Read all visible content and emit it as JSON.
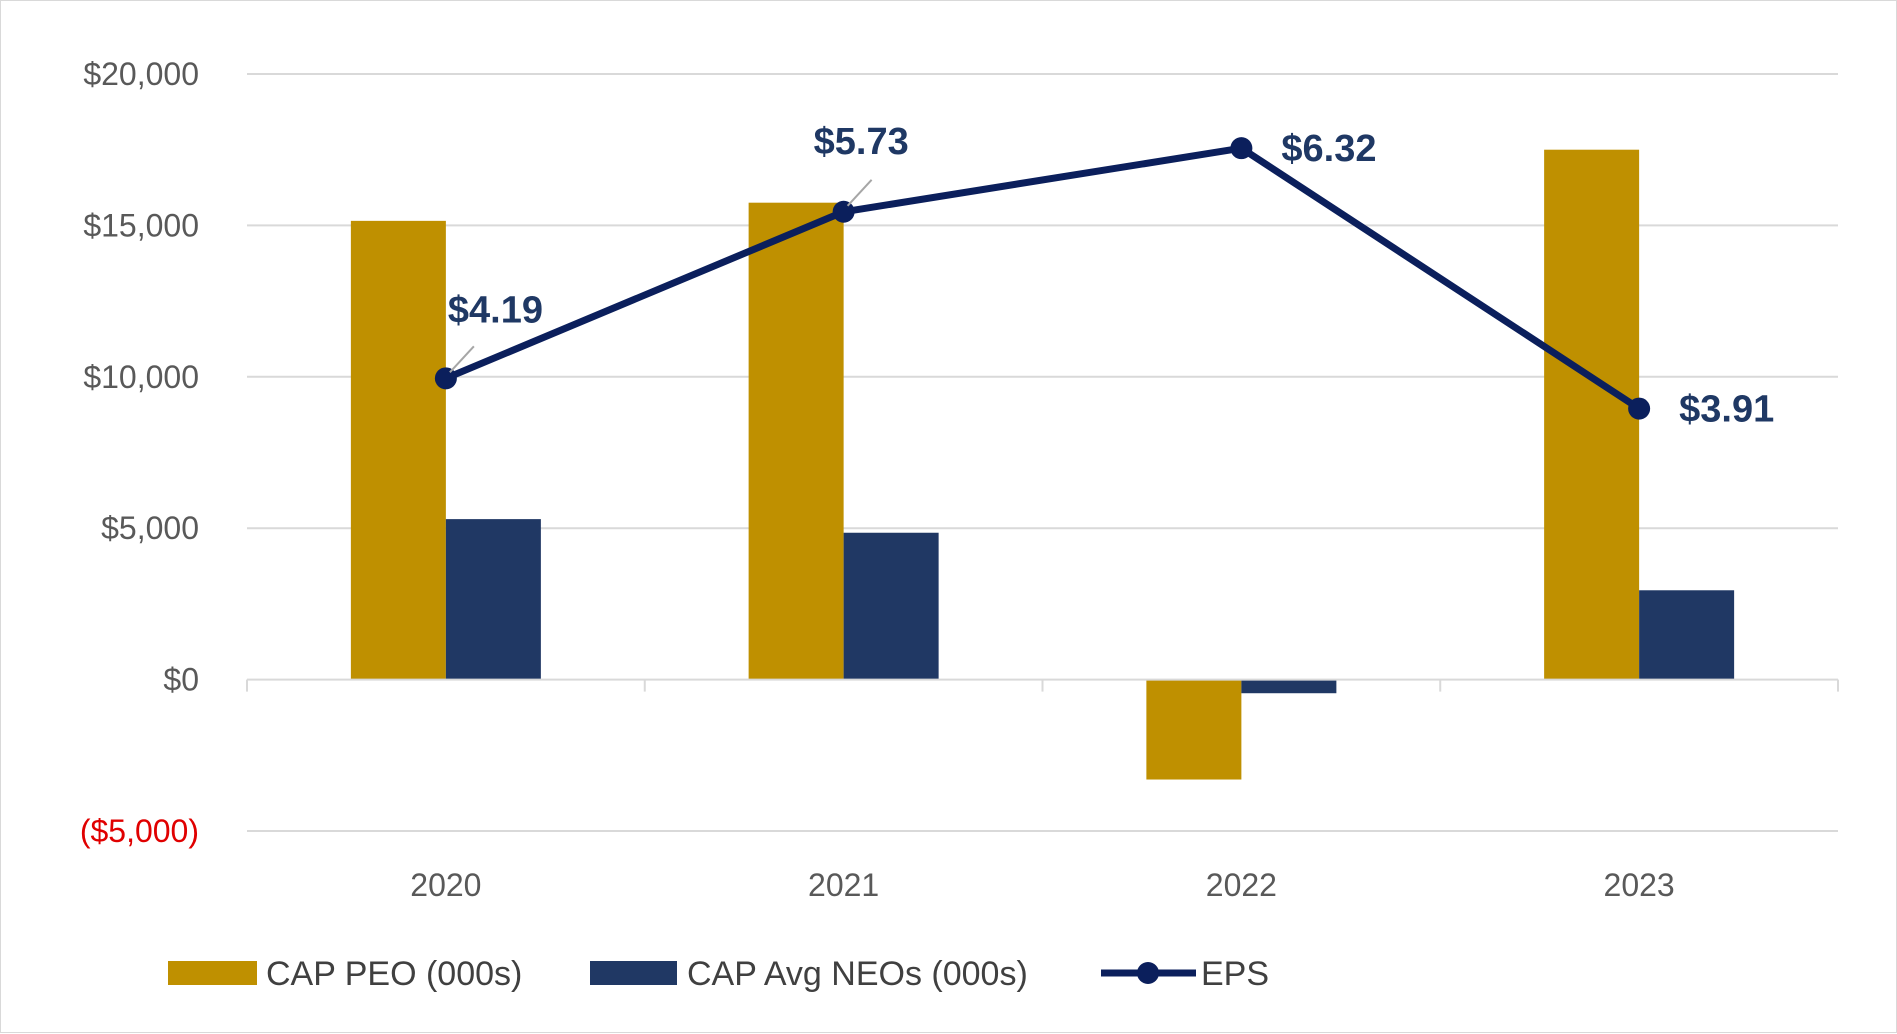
{
  "chart_data": {
    "type": "bar",
    "title": "",
    "xlabel": "",
    "ylabel": "",
    "categories": [
      "2020",
      "2021",
      "2022",
      "2023"
    ],
    "ylim": [
      -5000,
      20000
    ],
    "yticks": [
      {
        "value": 20000,
        "label": "$20,000",
        "color": "#595959"
      },
      {
        "value": 15000,
        "label": "$15,000",
        "color": "#595959"
      },
      {
        "value": 10000,
        "label": "$10,000",
        "color": "#595959"
      },
      {
        "value": 5000,
        "label": "$5,000",
        "color": "#595959"
      },
      {
        "value": 0,
        "label": "$0",
        "color": "#595959"
      },
      {
        "value": -5000,
        "label": "($5,000)",
        "color": "#e00000"
      }
    ],
    "grid": true,
    "series": [
      {
        "name": "CAP PEO (000s)",
        "kind": "bar",
        "color": "#bf9000",
        "values": [
          15150,
          15750,
          -3300,
          17500
        ]
      },
      {
        "name": "CAP Avg NEOs (000s)",
        "kind": "bar",
        "color": "#203864",
        "values": [
          5300,
          4850,
          -450,
          2950
        ]
      },
      {
        "name": "EPS",
        "kind": "line",
        "color": "#0b1f5c",
        "values": [
          4.19,
          5.73,
          6.32,
          3.91
        ],
        "plotted_at": [
          9950,
          15450,
          17550,
          8950
        ],
        "labels": [
          "$4.19",
          "$5.73",
          "$6.32",
          "$3.91"
        ]
      }
    ],
    "legend": "bottom"
  }
}
